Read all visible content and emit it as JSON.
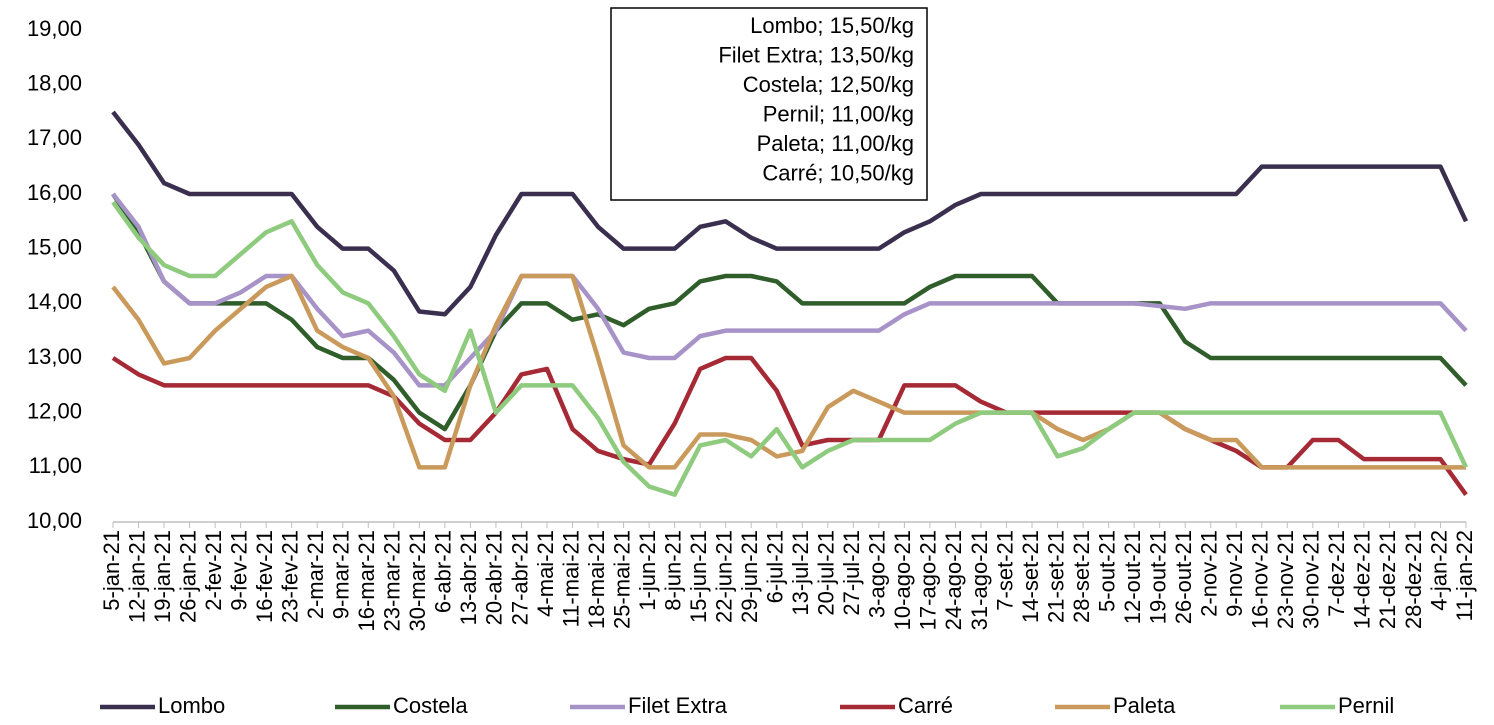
{
  "chart_data": {
    "type": "line",
    "categories": [
      "5-jan-21",
      "12-jan-21",
      "19-jan-21",
      "26-jan-21",
      "2-fev-21",
      "9-fev-21",
      "16-fev-21",
      "23-fev-21",
      "2-mar-21",
      "9-mar-21",
      "16-mar-21",
      "23-mar-21",
      "30-mar-21",
      "6-abr-21",
      "13-abr-21",
      "20-abr-21",
      "27-abr-21",
      "4-mai-21",
      "11-mai-21",
      "18-mai-21",
      "25-mai-21",
      "1-jun-21",
      "8-jun-21",
      "15-jun-21",
      "22-jun-21",
      "29-jun-21",
      "6-jul-21",
      "13-jul-21",
      "20-jul-21",
      "27-jul-21",
      "3-ago-21",
      "10-ago-21",
      "17-ago-21",
      "24-ago-21",
      "31-ago-21",
      "7-set-21",
      "14-set-21",
      "21-set-21",
      "28-set-21",
      "5-out-21",
      "12-out-21",
      "19-out-21",
      "26-out-21",
      "2-nov-21",
      "9-nov-21",
      "16-nov-21",
      "23-nov-21",
      "30-nov-21",
      "7-dez-21",
      "14-dez-21",
      "21-dez-21",
      "28-dez-21",
      "4-jan-22",
      "11-jan-22"
    ],
    "series": [
      {
        "name": "Lombo",
        "color": "#3b2f4f",
        "values": [
          17.5,
          16.9,
          16.2,
          16,
          16,
          16,
          16,
          16,
          15.4,
          15,
          15,
          14.6,
          13.85,
          13.8,
          14.3,
          15.25,
          16,
          16,
          16,
          15.4,
          15,
          15,
          15,
          15.4,
          15.5,
          15.2,
          15,
          15,
          15,
          15,
          15,
          15.3,
          15.5,
          15.8,
          16,
          16,
          16,
          16,
          16,
          16,
          16,
          16,
          16,
          16,
          16,
          16.5,
          16.5,
          16.5,
          16.5,
          16.5,
          16.5,
          16.5,
          16.5,
          15.5
        ]
      },
      {
        "name": "Costela",
        "color": "#2f5e2a",
        "values": [
          16,
          15.3,
          14.4,
          14,
          14,
          14,
          14,
          13.7,
          13.2,
          13,
          13,
          12.6,
          12,
          11.7,
          12.5,
          13.5,
          14,
          14,
          13.7,
          13.8,
          13.6,
          13.9,
          14,
          14.4,
          14.5,
          14.5,
          14.4,
          14,
          14,
          14,
          14,
          14,
          14.3,
          14.5,
          14.5,
          14.5,
          14.5,
          14,
          14,
          14,
          14,
          14,
          13.3,
          13,
          13,
          13,
          13,
          13,
          13,
          13,
          13,
          13,
          13,
          12.5
        ]
      },
      {
        "name": "Filet Extra",
        "color": "#a793c8",
        "values": [
          16,
          15.4,
          14.4,
          14,
          14,
          14.2,
          14.5,
          14.5,
          13.9,
          13.4,
          13.5,
          13.1,
          12.5,
          12.5,
          13,
          13.5,
          14.5,
          14.5,
          14.5,
          13.9,
          13.1,
          13,
          13,
          13.4,
          13.5,
          13.5,
          13.5,
          13.5,
          13.5,
          13.5,
          13.5,
          13.8,
          14,
          14,
          14,
          14,
          14,
          14,
          14,
          14,
          14,
          13.95,
          13.9,
          14,
          14,
          14,
          14,
          14,
          14,
          14,
          14,
          14,
          14,
          13.5
        ]
      },
      {
        "name": "Carré",
        "color": "#a52a35",
        "values": [
          13,
          12.7,
          12.5,
          12.5,
          12.5,
          12.5,
          12.5,
          12.5,
          12.5,
          12.5,
          12.5,
          12.3,
          11.8,
          11.5,
          11.5,
          12,
          12.7,
          12.8,
          11.7,
          11.3,
          11.15,
          11.05,
          11.8,
          12.8,
          13,
          13,
          12.4,
          11.4,
          11.5,
          11.5,
          11.5,
          12.5,
          12.5,
          12.5,
          12.2,
          12,
          12,
          12,
          12,
          12,
          12,
          12,
          11.7,
          11.5,
          11.3,
          11,
          11,
          11.5,
          11.5,
          11.15,
          11.15,
          11.15,
          11.15,
          10.5
        ]
      },
      {
        "name": "Paleta",
        "color": "#c99a5b",
        "values": [
          14.3,
          13.7,
          12.9,
          13,
          13.5,
          13.9,
          14.3,
          14.5,
          13.5,
          13.2,
          13,
          12.3,
          11,
          11,
          12.5,
          13.6,
          14.5,
          14.5,
          14.5,
          13,
          11.4,
          11,
          11,
          11.6,
          11.6,
          11.5,
          11.2,
          11.3,
          12.1,
          12.4,
          12.2,
          12,
          12,
          12,
          12,
          12,
          12,
          11.7,
          11.5,
          11.7,
          12,
          12,
          11.7,
          11.5,
          11.5,
          11,
          11,
          11,
          11,
          11,
          11,
          11,
          11,
          11
        ]
      },
      {
        "name": "Pernil",
        "color": "#8fcb7e",
        "values": [
          15.85,
          15.2,
          14.7,
          14.5,
          14.5,
          14.9,
          15.3,
          15.5,
          14.7,
          14.2,
          14,
          13.4,
          12.7,
          12.4,
          13.5,
          12,
          12.5,
          12.5,
          12.5,
          11.9,
          11.1,
          10.65,
          10.5,
          11.4,
          11.5,
          11.2,
          11.7,
          11,
          11.3,
          11.5,
          11.5,
          11.5,
          11.5,
          11.8,
          12,
          12,
          12,
          11.2,
          11.35,
          11.7,
          12,
          12,
          12,
          12,
          12,
          12,
          12,
          12,
          12,
          12,
          12,
          12,
          12,
          11
        ]
      }
    ],
    "ylim": [
      10,
      19
    ],
    "yticks": [
      {
        "value": 10,
        "label": "10,00"
      },
      {
        "value": 11,
        "label": "11,00"
      },
      {
        "value": 12,
        "label": "12,00"
      },
      {
        "value": 13,
        "label": "13,00"
      },
      {
        "value": 14,
        "label": "14,00"
      },
      {
        "value": 15,
        "label": "15,00"
      },
      {
        "value": 16,
        "label": "16,00"
      },
      {
        "value": 17,
        "label": "17,00"
      },
      {
        "value": 18,
        "label": "18,00"
      },
      {
        "value": 19,
        "label": "19,00"
      }
    ],
    "annotations": [
      "Lombo; 15,50/kg",
      "Filet Extra; 13,50/kg",
      "Costela; 12,50/kg",
      "Pernil; 11,00/kg",
      "Paleta; 11,00/kg",
      "Carré; 10,50/kg"
    ],
    "legend": "bottom"
  }
}
